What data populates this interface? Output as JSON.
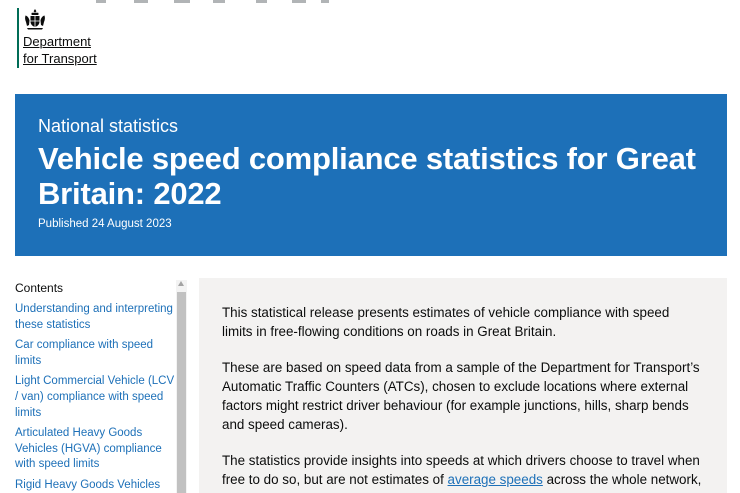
{
  "header": {
    "org_name_line1": "Department",
    "org_name_line2": "for Transport",
    "crest_icon": "royal-coat-of-arms-icon",
    "brand_color": "#006c56"
  },
  "banner": {
    "type_label": "National statistics",
    "title": "Vehicle speed compliance statistics for Great Britain: 2022",
    "published": "Published 24 August 2023",
    "background_color": "#1d70b8"
  },
  "contents": {
    "title": "Contents",
    "items": [
      "Understanding and interpreting these statistics",
      "Car compliance with speed limits",
      "Light Commercial Vehicle (LCV / van) compliance with speed limits",
      "Articulated Heavy Goods Vehicles (HGVA) compliance with speed limits",
      "Rigid Heavy Goods Vehicles"
    ]
  },
  "summary": {
    "p1": "This statistical release presents estimates of vehicle compliance with speed limits in free-flowing conditions on roads in Great Britain.",
    "p2": "These are based on speed data from a sample of the Department for Transport’s Automatic Traffic Counters (ATCs), chosen to exclude locations where external factors might restrict driver behaviour (for example junctions, hills, sharp bends and speed cameras).",
    "p3_before": "The statistics provide insights into speeds at which drivers choose to travel when free to do so, but are not estimates of ",
    "p3_link": "average speeds",
    "p3_after": " across the whole network, which are available separately."
  },
  "colors": {
    "link": "#1d70b8",
    "summary_background": "#f3f2f1"
  }
}
